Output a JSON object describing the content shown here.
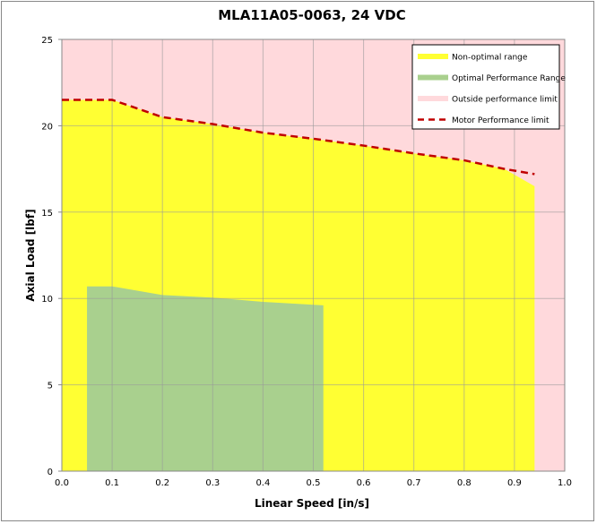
{
  "chart_data": {
    "type": "area",
    "title": "MLA11A05-0063, 24 VDC",
    "xlabel": "Linear Speed [in/s]",
    "ylabel": "Axial Load [lbf]",
    "xlim": [
      0,
      1.0
    ],
    "ylim": [
      0,
      25
    ],
    "xticks": [
      "0.0",
      "0.1",
      "0.2",
      "0.3",
      "0.4",
      "0.5",
      "0.6",
      "0.7",
      "0.8",
      "0.9",
      "1.0"
    ],
    "yticks": [
      "0",
      "5",
      "10",
      "15",
      "20",
      "25"
    ],
    "grid": true,
    "legend_position": "top-right",
    "series": [
      {
        "name": "Non-optimal range",
        "kind": "area",
        "color": "#ffff33",
        "x": [
          0,
          0.1,
          0.2,
          0.3,
          0.4,
          0.5,
          0.6,
          0.7,
          0.8,
          0.88,
          0.94
        ],
        "y": [
          21.5,
          21.5,
          20.5,
          20.1,
          19.6,
          19.25,
          18.85,
          18.4,
          18.0,
          17.5,
          16.5
        ]
      },
      {
        "name": "Optimal Performance Range",
        "kind": "area",
        "color": "#a9d08e",
        "x": [
          0.05,
          0.1,
          0.2,
          0.3,
          0.4,
          0.52
        ],
        "y": [
          10.7,
          10.7,
          10.2,
          10.05,
          9.8,
          9.6
        ]
      },
      {
        "name": "Outside performance limit",
        "kind": "background",
        "color": "#ffd9dc"
      },
      {
        "name": "Motor Performance limit",
        "kind": "dashed-line",
        "color": "#c00000",
        "x": [
          0,
          0.1,
          0.2,
          0.3,
          0.4,
          0.5,
          0.6,
          0.7,
          0.8,
          0.88,
          0.94
        ],
        "y": [
          21.5,
          21.5,
          20.5,
          20.1,
          19.6,
          19.25,
          18.85,
          18.4,
          18.0,
          17.5,
          17.2
        ]
      }
    ]
  }
}
